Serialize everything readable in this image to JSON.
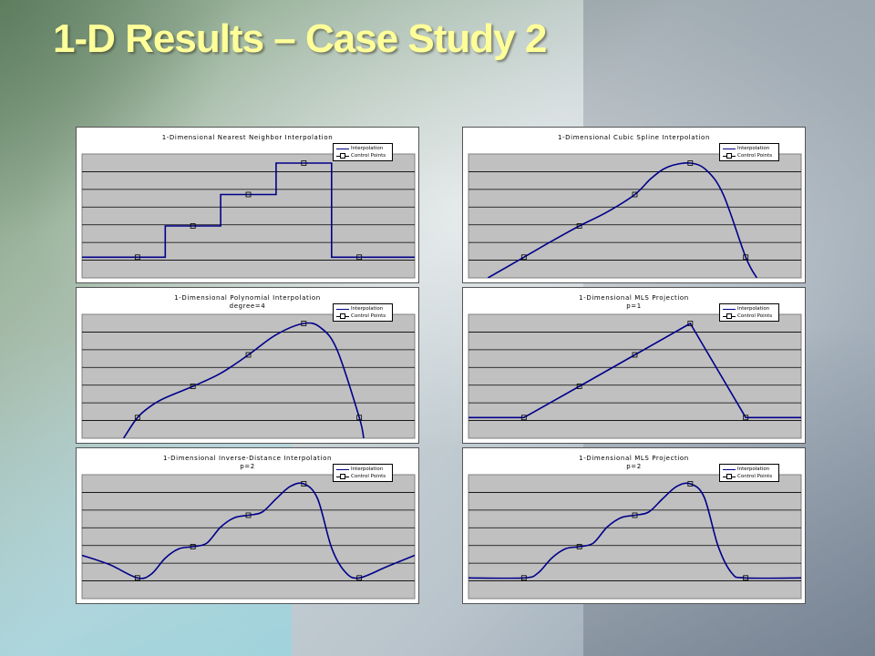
{
  "slide": {
    "title": "1-D Results – Case Study 2"
  },
  "colors": {
    "plot_background": "#c0c0c0",
    "interpolation_line": "#00008b",
    "control_point_marker": "#000000",
    "title_text": "#ffff99"
  },
  "legend": {
    "interpolation": "Interpolation",
    "control_points": "Control Points"
  },
  "chart_data": [
    {
      "id": "nearest",
      "type": "line",
      "title": "1-Dimensional Nearest Neighbor Interpolation",
      "subtitle": "",
      "xlim": [
        0,
        6
      ],
      "ylim": [
        -0.1,
        6
      ],
      "grid": true,
      "legend_position": "top-right",
      "control_points": {
        "x": [
          1,
          2,
          3,
          4,
          5
        ],
        "y": [
          1,
          2.66,
          4.33,
          6,
          1
        ]
      },
      "interpolation": {
        "x": [
          0,
          1.5,
          1.5,
          2.5,
          2.5,
          3.5,
          3.5,
          4.5,
          4.5,
          6
        ],
        "y": [
          1,
          1,
          2.66,
          2.66,
          4.33,
          4.33,
          6,
          6,
          1,
          1
        ]
      }
    },
    {
      "id": "cubic",
      "type": "line",
      "title": "1-Dimensional Cubic Spline Interpolation",
      "subtitle": "",
      "xlim": [
        0,
        6
      ],
      "ylim": [
        -0.1,
        6
      ],
      "grid": true,
      "legend_position": "top-right",
      "control_points": {
        "x": [
          1,
          2,
          3,
          4,
          5
        ],
        "y": [
          1,
          2.66,
          4.33,
          6,
          1
        ]
      },
      "interpolation": {
        "x": [
          0.35,
          1,
          1.5,
          2,
          2.5,
          3,
          3.3,
          3.6,
          4,
          4.3,
          4.6,
          5,
          5.2
        ],
        "y": [
          -0.1,
          1,
          1.85,
          2.66,
          3.4,
          4.33,
          5.2,
          5.8,
          6,
          5.6,
          4.3,
          1,
          -0.1
        ]
      }
    },
    {
      "id": "polynomial",
      "type": "line",
      "title": "1-Dimensional Polynomial Interpolation",
      "subtitle": "degree=4",
      "xlim": [
        0,
        6
      ],
      "ylim": [
        -0.1,
        6
      ],
      "grid": true,
      "legend_position": "top-right",
      "control_points": {
        "x": [
          1,
          2,
          3,
          4,
          5
        ],
        "y": [
          1,
          2.66,
          4.33,
          6,
          1
        ]
      },
      "interpolation": {
        "x": [
          0.75,
          1,
          1.25,
          1.5,
          2,
          2.5,
          3,
          3.5,
          4,
          4.3,
          4.6,
          5,
          5.08
        ],
        "y": [
          -0.1,
          1,
          1.63,
          2.05,
          2.66,
          3.35,
          4.33,
          5.4,
          6,
          5.78,
          4.6,
          1,
          -0.1
        ]
      }
    },
    {
      "id": "mls1",
      "type": "line",
      "title": "1-Dimensional MLS Projection",
      "subtitle": "p=1",
      "xlim": [
        0,
        6
      ],
      "ylim": [
        -0.1,
        6
      ],
      "grid": true,
      "legend_position": "top-right",
      "control_points": {
        "x": [
          1,
          2,
          3,
          4,
          5
        ],
        "y": [
          1,
          2.66,
          4.33,
          6,
          1
        ]
      },
      "interpolation": {
        "x": [
          0,
          1,
          2,
          3,
          4,
          5,
          6
        ],
        "y": [
          1,
          1,
          2.66,
          4.33,
          6,
          1,
          1
        ]
      }
    },
    {
      "id": "inverse",
      "type": "line",
      "title": "1-Dimensional Inverse-Distance Interpolation",
      "subtitle": "p=2",
      "xlim": [
        0,
        6
      ],
      "ylim": [
        -0.1,
        6
      ],
      "grid": true,
      "legend_position": "top-right",
      "control_points": {
        "x": [
          1,
          2,
          3,
          4,
          5
        ],
        "y": [
          1,
          2.66,
          4.33,
          6,
          1
        ]
      },
      "interpolation": {
        "x": [
          0,
          0.5,
          1,
          1.25,
          1.5,
          1.75,
          2,
          2.25,
          2.5,
          2.75,
          3,
          3.25,
          3.5,
          3.75,
          4,
          4.25,
          4.5,
          4.75,
          5,
          5.5,
          6
        ],
        "y": [
          2.2,
          1.7,
          1,
          1.2,
          2.05,
          2.55,
          2.66,
          2.85,
          3.7,
          4.2,
          4.33,
          4.5,
          5.2,
          5.85,
          6,
          5.2,
          2.6,
          1.3,
          1,
          1.6,
          2.2
        ]
      }
    },
    {
      "id": "mls2",
      "type": "line",
      "title": "1-Dimensional MLS Projection",
      "subtitle": "p=2",
      "xlim": [
        0,
        6
      ],
      "ylim": [
        -0.1,
        6
      ],
      "grid": true,
      "legend_position": "top-right",
      "control_points": {
        "x": [
          1,
          2,
          3,
          4,
          5
        ],
        "y": [
          1,
          2.66,
          4.33,
          6,
          1
        ]
      },
      "interpolation": {
        "x": [
          0,
          1,
          1.25,
          1.5,
          1.75,
          2,
          2.25,
          2.5,
          2.75,
          3,
          3.25,
          3.5,
          3.75,
          4,
          4.25,
          4.5,
          4.75,
          5,
          6
        ],
        "y": [
          1,
          1,
          1.25,
          2.05,
          2.55,
          2.66,
          2.85,
          3.7,
          4.2,
          4.33,
          4.5,
          5.2,
          5.85,
          6,
          5.3,
          2.7,
          1.25,
          1,
          1
        ]
      }
    }
  ]
}
